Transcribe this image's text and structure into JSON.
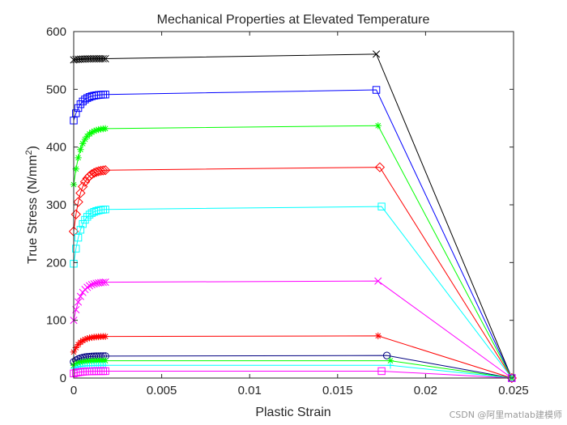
{
  "watermark": "CSDN @阿里matlab建模师",
  "chart_data": {
    "type": "line",
    "title": "Mechanical Properties at Elevated Temperature",
    "xlabel": "Plastic Strain",
    "ylabel_main": "True Stress (N/mm",
    "ylabel_sup": "2",
    "ylabel_tail": ")",
    "xlim": [
      0,
      0.025
    ],
    "ylim": [
      0,
      600
    ],
    "xticks": [
      0,
      0.005,
      0.01,
      0.015,
      0.02,
      0.025
    ],
    "xtick_labels": [
      "0",
      "0.005",
      "0.01",
      "0.015",
      "0.02",
      "0.025"
    ],
    "yticks": [
      0,
      100,
      200,
      300,
      400,
      500,
      600
    ],
    "ytick_labels": [
      "0",
      "100",
      "200",
      "300",
      "400",
      "500",
      "600"
    ],
    "grid": false,
    "box": true,
    "series": [
      {
        "color": "#000000",
        "marker": "x",
        "x_end": 0.0172,
        "plateau": [
          553,
          553
        ],
        "peak": 561,
        "start": 551
      },
      {
        "color": "#0000ff",
        "marker": "square",
        "x_end": 0.0172,
        "plateau": [
          446,
          491
        ],
        "peak": 499,
        "start": 446
      },
      {
        "color": "#00ff00",
        "marker": "asterisk",
        "x_end": 0.0173,
        "plateau": [
          335,
          432
        ],
        "peak": 437,
        "start": 335
      },
      {
        "color": "#ff0000",
        "marker": "diamond",
        "x_end": 0.0174,
        "plateau": [
          254,
          360
        ],
        "peak": 365,
        "start": 254
      },
      {
        "color": "#00ffff",
        "marker": "square",
        "x_end": 0.0175,
        "plateau": [
          198,
          292
        ],
        "peak": 297,
        "start": 198
      },
      {
        "color": "#ff00ff",
        "marker": "x",
        "x_end": 0.0173,
        "plateau": [
          100,
          166
        ],
        "peak": 168,
        "start": 100
      },
      {
        "color": "#ff0000",
        "marker": "asterisk",
        "x_end": 0.0173,
        "plateau": [
          45,
          72
        ],
        "peak": 73,
        "start": 45
      },
      {
        "color": "#000080",
        "marker": "circle",
        "x_end": 0.0178,
        "plateau": [
          28,
          38
        ],
        "peak": 39,
        "start": 28
      },
      {
        "color": "#00ff00",
        "marker": "asterisk",
        "x_end": 0.018,
        "plateau": [
          22,
          30
        ],
        "peak": 30,
        "start": 22
      },
      {
        "color": "#00ffff",
        "marker": "plus",
        "x_end": 0.018,
        "plateau": [
          17,
          22
        ],
        "peak": 22,
        "start": 17
      },
      {
        "color": "#ff00ff",
        "marker": "square",
        "x_end": 0.0175,
        "plateau": [
          8,
          12
        ],
        "peak": 12,
        "start": 8
      }
    ],
    "end_point": [
      0.0249,
      0
    ]
  }
}
